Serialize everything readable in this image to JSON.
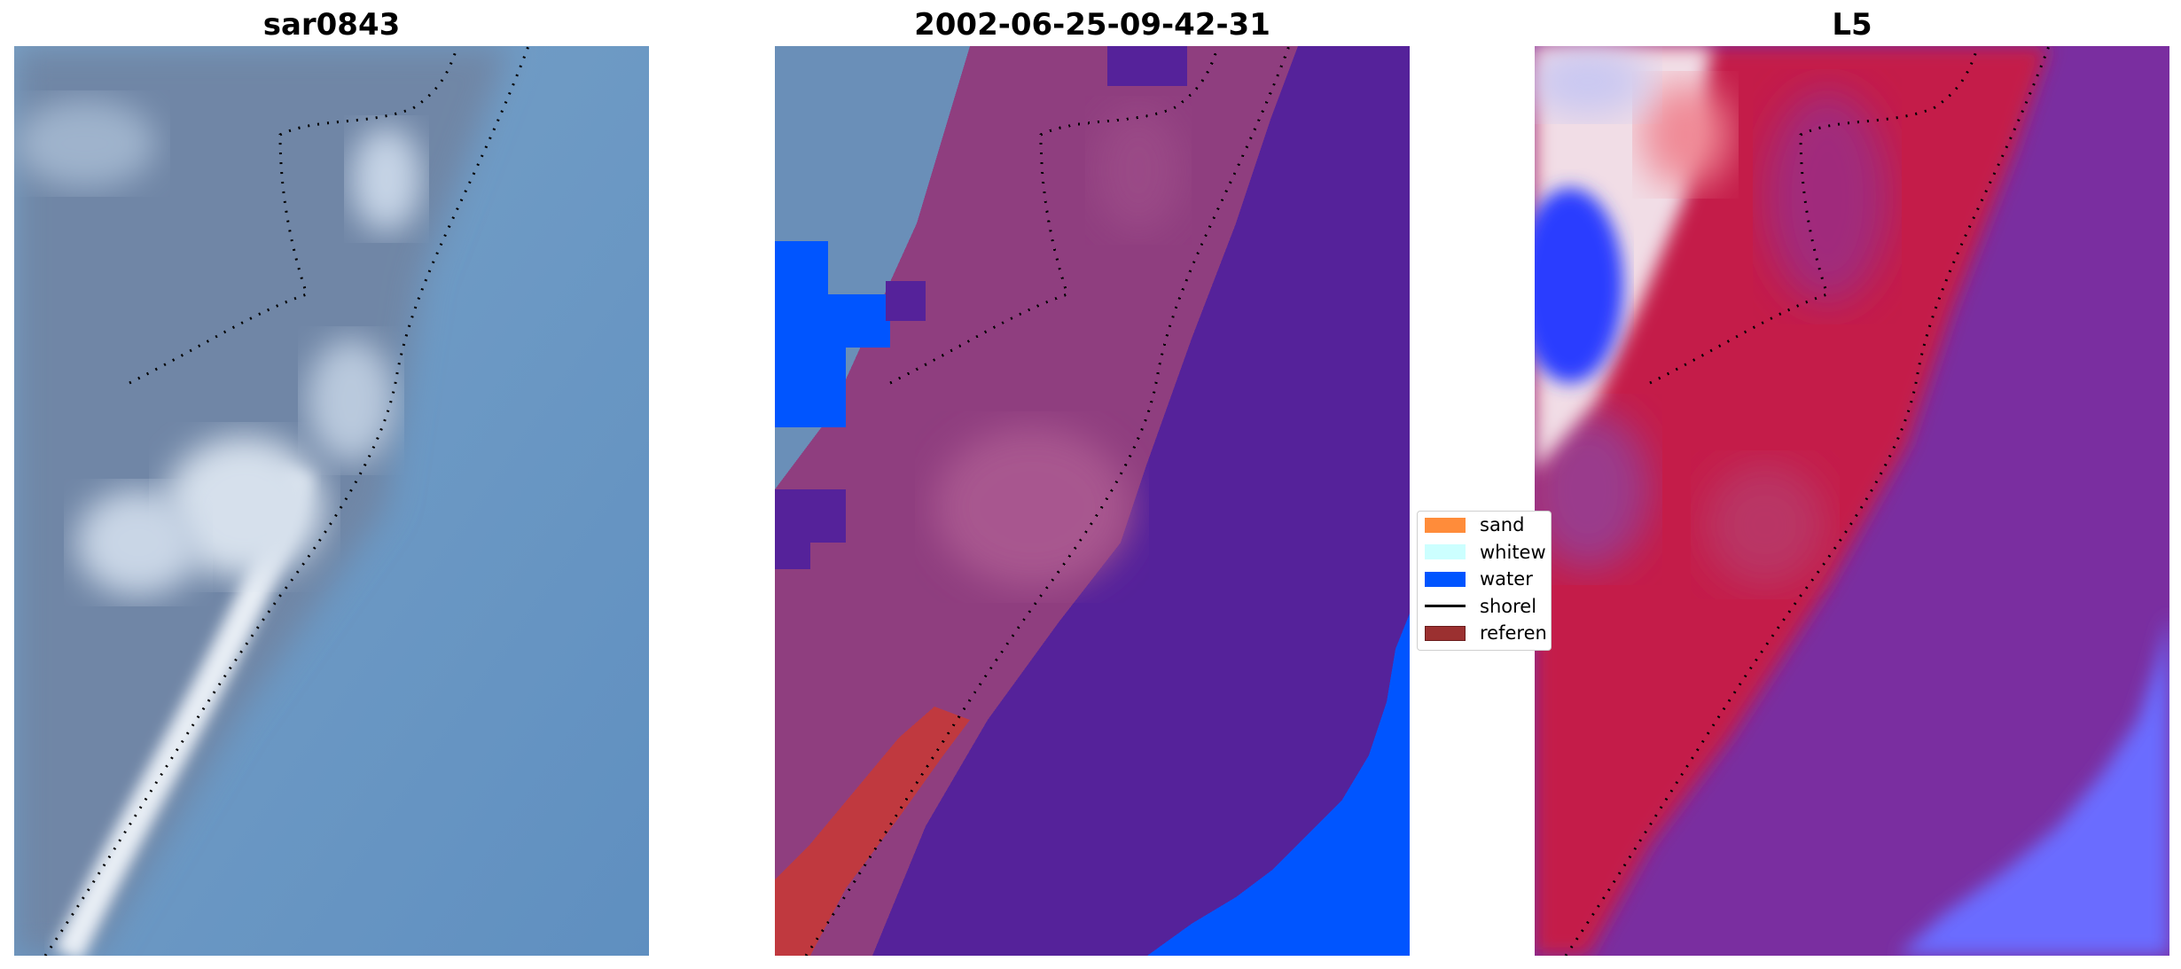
{
  "panels": [
    {
      "title": "sar0843"
    },
    {
      "title": "2002-06-25-09-42-31"
    },
    {
      "title": "L5"
    }
  ],
  "legend": {
    "items": [
      {
        "label": "sand",
        "color": "#ff8c3a"
      },
      {
        "label": "whitew",
        "color": "#ccffff"
      },
      {
        "label": "water",
        "color": "#0055ff"
      },
      {
        "label": "shorel",
        "color": "#000000"
      },
      {
        "label": "referen",
        "color": "#9b3030"
      }
    ]
  },
  "colors": {
    "sea_blue": "#6897c2",
    "land_pink": "#8f3e7f",
    "class_purple": "#55229a",
    "class_water": "#0055ff",
    "reference_red": "#c0393f",
    "index_red": "#c41e4a",
    "index_purple": "#7a2ea0",
    "index_blue": "#6a6cff"
  }
}
